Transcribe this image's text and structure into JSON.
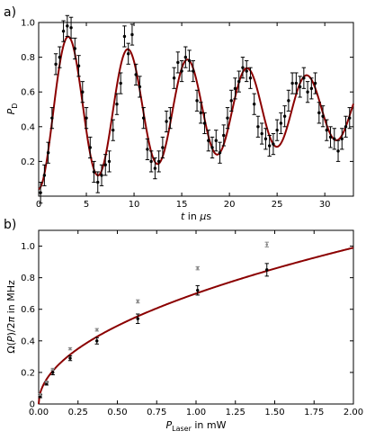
{
  "chart_data": [
    {
      "type": "scatter",
      "panel_label": "a)",
      "xlabel": "t in μs",
      "xlabel_parts": {
        "var": "t",
        "rest": " in ",
        "unit_prefix": "μ",
        "unit": "s"
      },
      "ylabel": "P_D",
      "ylabel_parts": {
        "var": "P",
        "sub": "D"
      },
      "xlim": [
        0,
        33
      ],
      "ylim": [
        0,
        1.0
      ],
      "xticks": [
        0,
        5,
        10,
        15,
        20,
        25,
        30
      ],
      "xtick_labels": [
        "0",
        "5",
        "10",
        "15",
        "20",
        "25",
        "30"
      ],
      "yticks": [
        0.2,
        0.4,
        0.6,
        0.8,
        1.0
      ],
      "ytick_labels": [
        "0.2",
        "0.4",
        "0.6",
        "0.8",
        "1.0"
      ],
      "fit_color": "#8b0000",
      "marker_color": "#000000",
      "series": [
        {
          "kind": "measurement",
          "x": [
            0.2,
            0.6,
            1.0,
            1.4,
            1.8,
            2.2,
            2.6,
            3.0,
            3.4,
            3.8,
            4.2,
            4.6,
            5.0,
            5.4,
            5.8,
            6.2,
            6.6,
            7.0,
            7.4,
            7.8,
            8.2,
            8.6,
            9.0,
            9.4,
            9.8,
            10.2,
            10.6,
            11.0,
            11.4,
            11.8,
            12.2,
            12.6,
            13.0,
            13.4,
            13.8,
            14.2,
            14.6,
            15.0,
            15.4,
            15.8,
            16.2,
            16.6,
            17.0,
            17.4,
            17.8,
            18.2,
            18.6,
            19.0,
            19.4,
            19.8,
            20.2,
            20.6,
            21.0,
            21.4,
            21.8,
            22.2,
            22.6,
            23.0,
            23.4,
            23.8,
            24.2,
            24.6,
            25.0,
            25.4,
            25.8,
            26.2,
            26.6,
            27.0,
            27.4,
            27.8,
            28.2,
            28.6,
            29.0,
            29.4,
            29.8,
            30.2,
            30.6,
            31.0,
            31.4,
            31.8,
            32.2,
            32.6
          ],
          "y": [
            0.02,
            0.12,
            0.25,
            0.45,
            0.76,
            0.8,
            0.95,
            0.98,
            0.97,
            0.85,
            0.75,
            0.6,
            0.45,
            0.28,
            0.14,
            0.08,
            0.12,
            0.18,
            0.2,
            0.38,
            0.53,
            0.65,
            0.92,
            0.82,
            0.93,
            0.7,
            0.63,
            0.45,
            0.27,
            0.2,
            0.16,
            0.2,
            0.28,
            0.43,
            0.45,
            0.68,
            0.77,
            0.72,
            0.8,
            0.78,
            0.72,
            0.55,
            0.48,
            0.42,
            0.32,
            0.28,
            0.32,
            0.25,
            0.35,
            0.45,
            0.55,
            0.62,
            0.66,
            0.74,
            0.72,
            0.68,
            0.53,
            0.4,
            0.36,
            0.33,
            0.29,
            0.3,
            0.38,
            0.42,
            0.46,
            0.55,
            0.65,
            0.65,
            0.63,
            0.68,
            0.6,
            0.62,
            0.65,
            0.48,
            0.46,
            0.38,
            0.34,
            0.33,
            0.26,
            0.33,
            0.4,
            0.45
          ],
          "yerr": 0.06
        },
        {
          "kind": "fit",
          "model": "damped-sine",
          "params": {
            "amplitude": 0.46,
            "decay_time": 33.0,
            "period": 6.25,
            "offset": 0.5
          }
        }
      ]
    },
    {
      "type": "scatter",
      "panel_label": "b)",
      "xlabel": "P_Laser in mW",
      "xlabel_parts": {
        "var": "P",
        "sub": "Laser",
        "rest": " in mW"
      },
      "ylabel": "Ω(P)/2π in MHz",
      "ylabel_parts": {
        "pre": "Ω(",
        "var": "P",
        "post": ")/2",
        "pi": "π",
        "rest": " in MHz"
      },
      "xlim": [
        0,
        2.0
      ],
      "ylim": [
        0,
        1.1
      ],
      "xticks": [
        0.0,
        0.25,
        0.5,
        0.75,
        1.0,
        1.25,
        1.5,
        1.75,
        2.0
      ],
      "xtick_labels": [
        "0.00",
        "0.25",
        "0.50",
        "0.75",
        "1.00",
        "1.25",
        "1.50",
        "1.75",
        "2.00"
      ],
      "yticks": [
        0,
        0.2,
        0.4,
        0.6,
        0.8,
        1.0
      ],
      "ytick_labels": [
        "0",
        "0.2",
        "0.4",
        "0.6",
        "0.8",
        "1.0"
      ],
      "fit_color": "#8b0000",
      "marker_color": "#000000",
      "secondary_color": "#888888",
      "series": [
        {
          "kind": "measurement",
          "x": [
            0.01,
            0.05,
            0.09,
            0.2,
            0.37,
            0.63,
            1.01,
            1.45
          ],
          "y": [
            0.05,
            0.13,
            0.2,
            0.29,
            0.4,
            0.54,
            0.72,
            0.85
          ],
          "yerr": [
            0.01,
            0.01,
            0.015,
            0.015,
            0.02,
            0.03,
            0.03,
            0.04
          ]
        },
        {
          "kind": "measurement-secondary",
          "x": [
            0.01,
            0.05,
            0.09,
            0.2,
            0.37,
            0.63,
            1.01,
            1.45
          ],
          "y": [
            0.06,
            0.14,
            0.22,
            0.35,
            0.47,
            0.65,
            0.86,
            1.01
          ],
          "yerr": [
            0.005,
            0.005,
            0.006,
            0.007,
            0.008,
            0.01,
            0.01,
            0.015
          ]
        },
        {
          "kind": "fit",
          "model": "power-law",
          "params": {
            "coefficient": 0.7,
            "exponent": 0.5
          }
        }
      ]
    }
  ]
}
